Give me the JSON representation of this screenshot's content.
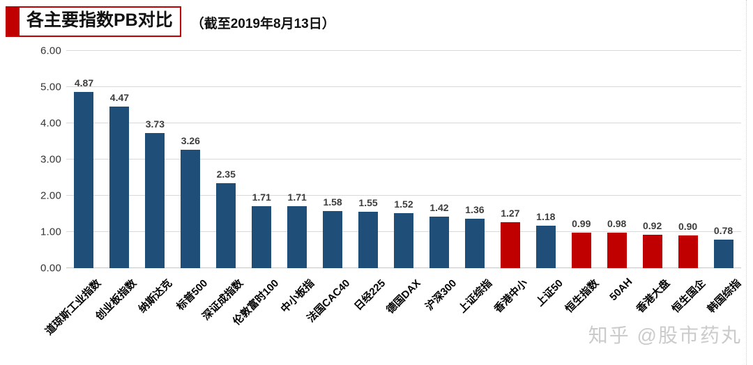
{
  "header": {
    "title": "各主要指数PB对比",
    "subtitle": "（截至2019年8月13日）"
  },
  "watermark": "知乎 @股市药丸",
  "colors": {
    "bar_default": "#1F4E79",
    "bar_highlight": "#C00000",
    "accent_red": "#C00000",
    "gridline": "#D9D9D9"
  },
  "chart_data": {
    "type": "bar",
    "title": "各主要指数PB对比",
    "subtitle": "（截至2019年8月13日）",
    "categories": [
      "道琼斯工业指数",
      "创业板指数",
      "纳斯达克",
      "标普500",
      "深证成指数",
      "伦敦富时100",
      "中小板指",
      "法国CAC40",
      "日经225",
      "德国DAX",
      "沪深300",
      "上证综指",
      "香港中小",
      "上证50",
      "恒生指数",
      "50AH",
      "香港大盘",
      "恒生国企",
      "韩国综指"
    ],
    "values": [
      4.87,
      4.47,
      3.73,
      3.26,
      2.35,
      1.71,
      1.71,
      1.58,
      1.55,
      1.52,
      1.42,
      1.36,
      1.27,
      1.18,
      0.99,
      0.98,
      0.92,
      0.9,
      0.78
    ],
    "highlighted_categories": [
      "香港中小",
      "恒生指数",
      "50AH",
      "香港大盘",
      "恒生国企"
    ],
    "ylabel": "",
    "xlabel": "",
    "ylim": [
      0,
      6
    ],
    "yticks": [
      0,
      1,
      2,
      3,
      4,
      5,
      6
    ],
    "grid": true,
    "legend": false,
    "bar_color_default": "#1F4E79",
    "bar_color_highlight": "#C00000"
  }
}
